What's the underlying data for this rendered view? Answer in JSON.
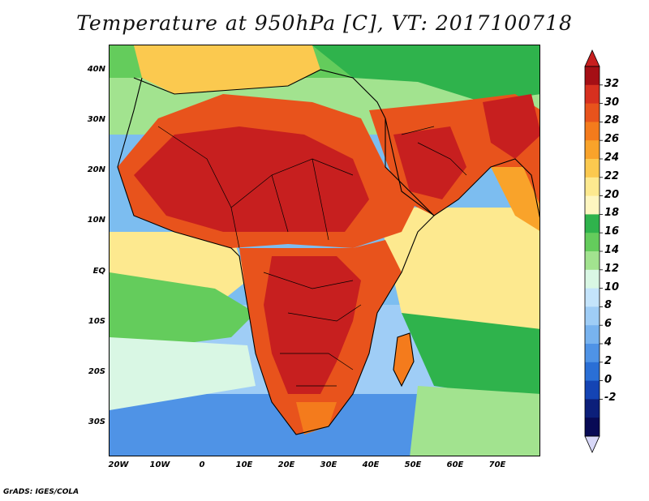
{
  "title": "Temperature at 950hPa [C], VT: 2017100718",
  "footer": "GrADS: IGES/COLA",
  "lat_ticks": [
    "40N",
    "30N",
    "20N",
    "10N",
    "EQ",
    "10S",
    "20S",
    "30S"
  ],
  "lon_ticks": [
    "20W",
    "10W",
    "0",
    "10E",
    "20E",
    "30E",
    "40E",
    "50E",
    "60E",
    "70E"
  ],
  "colorbar": {
    "labels": [
      "32",
      "30",
      "28",
      "26",
      "24",
      "22",
      "20",
      "18",
      "16",
      "14",
      "12",
      "10",
      "8",
      "6",
      "4",
      "2",
      "0",
      "-2"
    ],
    "colors": [
      "#a50f15",
      "#d7301f",
      "#e8531c",
      "#f47b1c",
      "#f9a32a",
      "#fbc94f",
      "#fde98f",
      "#fef6c0",
      "#2fb34c",
      "#64cc5c",
      "#a2e38f",
      "#d9f7e4",
      "#c4e4fb",
      "#9fcdf6",
      "#78b3ef",
      "#4f93e6",
      "#2a6fd6",
      "#1444b4",
      "#0c1f7a",
      "#080a55"
    ],
    "top_triangle_color": "#c71f1f",
    "bottom_triangle_color": "#d8d8f8"
  },
  "map": {
    "lon_range": [
      -22,
      80
    ],
    "lat_range": [
      -37,
      45
    ],
    "field": "Temperature at 950hPa",
    "units": "C"
  }
}
